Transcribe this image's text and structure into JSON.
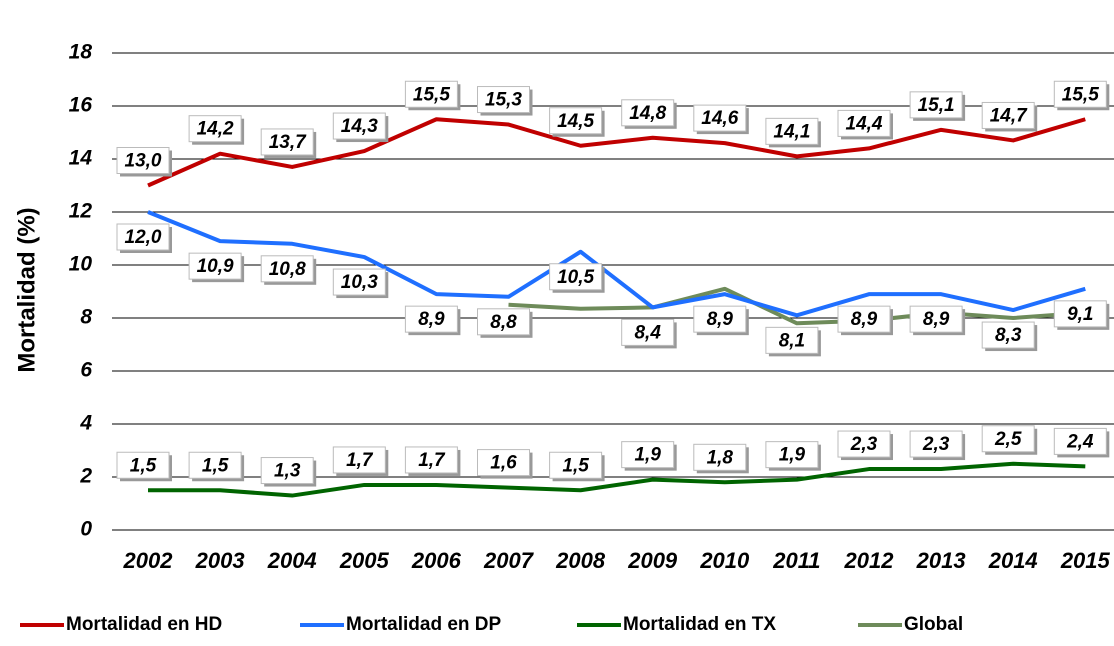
{
  "chart_data": {
    "type": "line",
    "y_label": "Mortalidad (%)",
    "categories": [
      "2002",
      "2003",
      "2004",
      "2005",
      "2006",
      "2007",
      "2008",
      "2009",
      "2010",
      "2011",
      "2012",
      "2013",
      "2014",
      "2015"
    ],
    "ylim": [
      0,
      18
    ],
    "yticks": [
      0,
      2,
      4,
      6,
      8,
      10,
      12,
      14,
      16,
      18
    ],
    "grid": true,
    "series": [
      {
        "name": "Mortalidad en HD",
        "color": "#c00000",
        "label_pos": "above",
        "values": [
          13.0,
          14.2,
          13.7,
          14.3,
          15.5,
          15.3,
          14.5,
          14.8,
          14.6,
          14.1,
          14.4,
          15.1,
          14.7,
          15.5
        ],
        "value_labels": [
          "13,0",
          "14,2",
          "13,7",
          "14,3",
          "15,5",
          "15,3",
          "14,5",
          "14,8",
          "14,6",
          "14,1",
          "14,4",
          "15,1",
          "14,7",
          "15,5"
        ]
      },
      {
        "name": "Mortalidad en DP",
        "color": "#1f6fff",
        "label_pos": "below",
        "values": [
          12.0,
          10.9,
          10.8,
          10.3,
          8.9,
          8.8,
          10.5,
          8.4,
          8.9,
          8.1,
          8.9,
          8.9,
          8.3,
          9.1
        ],
        "value_labels": [
          "12,0",
          "10,9",
          "10,8",
          "10,3",
          "8,9",
          "8,8",
          "10,5",
          "8,4",
          "8,9",
          "8,1",
          "8,9",
          "8,9",
          "8,3",
          "9,1"
        ]
      },
      {
        "name": "Mortalidad en TX",
        "color": "#006400",
        "label_pos": "above",
        "values": [
          1.5,
          1.5,
          1.3,
          1.7,
          1.7,
          1.6,
          1.5,
          1.9,
          1.8,
          1.9,
          2.3,
          2.3,
          2.5,
          2.4
        ],
        "value_labels": [
          "1,5",
          "1,5",
          "1,3",
          "1,7",
          "1,7",
          "1,6",
          "1,5",
          "1,9",
          "1,8",
          "1,9",
          "2,3",
          "2,3",
          "2,5",
          "2,4"
        ]
      },
      {
        "name": "Global",
        "color": "#6e8b5a",
        "values": [
          null,
          null,
          null,
          null,
          null,
          8.5,
          8.35,
          8.4,
          9.1,
          7.8,
          7.9,
          8.2,
          8.0,
          8.2
        ]
      }
    ]
  }
}
